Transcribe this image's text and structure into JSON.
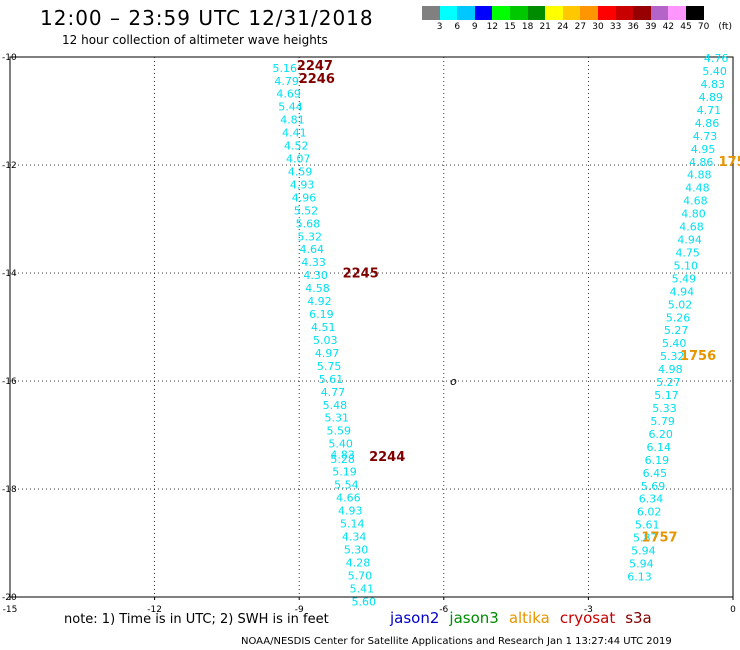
{
  "title": "12:00 – 23:59 UTC 12/31/2018",
  "subtitle": "12 hour collection of altimeter wave heights",
  "colorbar": {
    "labels": [
      "3",
      "6",
      "9",
      "12",
      "15",
      "18",
      "21",
      "24",
      "27",
      "30",
      "33",
      "36",
      "39",
      "42",
      "45",
      "70",
      "(ft)"
    ],
    "colors": [
      "#808080",
      "#00ffff",
      "#00c8ff",
      "#0000ff",
      "#00ff00",
      "#00c800",
      "#008c00",
      "#ffff00",
      "#ffc800",
      "#ff9600",
      "#ff0000",
      "#c80000",
      "#960000",
      "#b464c8",
      "#ff96ff",
      "#000000"
    ]
  },
  "chart_data": {
    "type": "scatter",
    "xlim": [
      -15,
      0
    ],
    "ylim": [
      -20,
      -10
    ],
    "x_ticks": [
      "-15",
      "-12",
      "-9",
      "-6",
      "-3",
      "0"
    ],
    "y_ticks": [
      "-10",
      "-12",
      "-14",
      "-16",
      "-18",
      "-20"
    ],
    "grid": true,
    "center_marker": "o",
    "center_marker_pos": [
      -5.8,
      -16
    ],
    "tracks": [
      {
        "name": "track-west",
        "color": "#00e0f0",
        "points": [
          {
            "x": -9.3,
            "y": -10.2,
            "label": "5.16"
          },
          {
            "x": -9.26,
            "y": -10.44,
            "label": "4.79"
          },
          {
            "x": -9.22,
            "y": -10.68,
            "label": "4.69"
          },
          {
            "x": -9.18,
            "y": -10.92,
            "label": "5.44"
          },
          {
            "x": -9.14,
            "y": -11.16,
            "label": "4.81"
          },
          {
            "x": -9.1,
            "y": -11.4,
            "label": "4.41"
          },
          {
            "x": -9.06,
            "y": -11.64,
            "label": "4.52"
          },
          {
            "x": -9.02,
            "y": -11.88,
            "label": "4.07"
          },
          {
            "x": -8.98,
            "y": -12.12,
            "label": "4.59"
          },
          {
            "x": -8.94,
            "y": -12.36,
            "label": "4.93"
          },
          {
            "x": -8.9,
            "y": -12.6,
            "label": "4.96"
          },
          {
            "x": -8.86,
            "y": -12.84,
            "label": "5.52"
          },
          {
            "x": -8.82,
            "y": -13.08,
            "label": "5.68"
          },
          {
            "x": -8.78,
            "y": -13.32,
            "label": "5.32"
          },
          {
            "x": -8.74,
            "y": -13.56,
            "label": "4.64"
          },
          {
            "x": -8.7,
            "y": -13.8,
            "label": "4.33"
          },
          {
            "x": -8.66,
            "y": -14.04,
            "label": "4.30"
          },
          {
            "x": -8.62,
            "y": -14.28,
            "label": "4.58"
          },
          {
            "x": -8.58,
            "y": -14.52,
            "label": "4.92"
          },
          {
            "x": -8.54,
            "y": -14.76,
            "label": "6.19"
          },
          {
            "x": -8.5,
            "y": -15.0,
            "label": "4.51"
          },
          {
            "x": -8.46,
            "y": -15.24,
            "label": "5.03"
          },
          {
            "x": -8.42,
            "y": -15.48,
            "label": "4.97"
          },
          {
            "x": -8.38,
            "y": -15.72,
            "label": "5.75"
          },
          {
            "x": -8.34,
            "y": -15.96,
            "label": "5.61"
          },
          {
            "x": -8.3,
            "y": -16.2,
            "label": "4.77"
          },
          {
            "x": -8.26,
            "y": -16.44,
            "label": "5.48"
          },
          {
            "x": -8.22,
            "y": -16.68,
            "label": "5.31"
          },
          {
            "x": -8.18,
            "y": -16.92,
            "label": "5.59"
          },
          {
            "x": -8.14,
            "y": -17.16,
            "label": "5.40"
          },
          {
            "x": -8.1,
            "y": -17.36,
            "label": "4.83"
          },
          {
            "x": -8.1,
            "y": -17.44,
            "label": "5.28"
          },
          {
            "x": -8.06,
            "y": -17.68,
            "label": "5.19"
          },
          {
            "x": -8.02,
            "y": -17.92,
            "label": "5.54"
          },
          {
            "x": -7.98,
            "y": -18.16,
            "label": "4.66"
          },
          {
            "x": -7.94,
            "y": -18.4,
            "label": "4.93"
          },
          {
            "x": -7.9,
            "y": -18.64,
            "label": "5.14"
          },
          {
            "x": -7.86,
            "y": -18.88,
            "label": "4.34"
          },
          {
            "x": -7.82,
            "y": -19.12,
            "label": "5.30"
          },
          {
            "x": -7.78,
            "y": -19.36,
            "label": "4.28"
          },
          {
            "x": -7.74,
            "y": -19.6,
            "label": "5.70"
          },
          {
            "x": -7.7,
            "y": -19.84,
            "label": "5.41"
          },
          {
            "x": -7.66,
            "y": -20.08,
            "label": "5.60"
          }
        ]
      },
      {
        "name": "track-east",
        "color": "#00e0f0",
        "points": [
          {
            "x": -0.35,
            "y": -10.02,
            "label": "4.76"
          },
          {
            "x": -0.38,
            "y": -10.26,
            "label": "5.40"
          },
          {
            "x": -0.42,
            "y": -10.5,
            "label": "4.83"
          },
          {
            "x": -0.46,
            "y": -10.74,
            "label": "4.89"
          },
          {
            "x": -0.5,
            "y": -10.98,
            "label": "4.71"
          },
          {
            "x": -0.54,
            "y": -11.22,
            "label": "4.86"
          },
          {
            "x": -0.58,
            "y": -11.46,
            "label": "4.73"
          },
          {
            "x": -0.62,
            "y": -11.7,
            "label": "4.95"
          },
          {
            "x": -0.66,
            "y": -11.94,
            "label": "4.86"
          },
          {
            "x": -0.7,
            "y": -12.18,
            "label": "4.88"
          },
          {
            "x": -0.74,
            "y": -12.42,
            "label": "4.48"
          },
          {
            "x": -0.78,
            "y": -12.66,
            "label": "4.68"
          },
          {
            "x": -0.82,
            "y": -12.9,
            "label": "4.80"
          },
          {
            "x": -0.86,
            "y": -13.14,
            "label": "4.68"
          },
          {
            "x": -0.9,
            "y": -13.38,
            "label": "4.94"
          },
          {
            "x": -0.94,
            "y": -13.62,
            "label": "4.75"
          },
          {
            "x": -0.98,
            "y": -13.86,
            "label": "5.10"
          },
          {
            "x": -1.02,
            "y": -14.1,
            "label": "5.49"
          },
          {
            "x": -1.06,
            "y": -14.34,
            "label": "4.94"
          },
          {
            "x": -1.1,
            "y": -14.58,
            "label": "5.02"
          },
          {
            "x": -1.14,
            "y": -14.82,
            "label": "5.26"
          },
          {
            "x": -1.18,
            "y": -15.06,
            "label": "5.27"
          },
          {
            "x": -1.22,
            "y": -15.3,
            "label": "5.40"
          },
          {
            "x": -1.26,
            "y": -15.54,
            "label": "5.32"
          },
          {
            "x": -1.3,
            "y": -15.78,
            "label": "4.98"
          },
          {
            "x": -1.34,
            "y": -16.02,
            "label": "5.27"
          },
          {
            "x": -1.38,
            "y": -16.26,
            "label": "5.17"
          },
          {
            "x": -1.42,
            "y": -16.5,
            "label": "5.33"
          },
          {
            "x": -1.46,
            "y": -16.74,
            "label": "5.79"
          },
          {
            "x": -1.5,
            "y": -16.98,
            "label": "6.20"
          },
          {
            "x": -1.54,
            "y": -17.22,
            "label": "6.14"
          },
          {
            "x": -1.58,
            "y": -17.46,
            "label": "6.19"
          },
          {
            "x": -1.62,
            "y": -17.7,
            "label": "6.45"
          },
          {
            "x": -1.66,
            "y": -17.94,
            "label": "5.69"
          },
          {
            "x": -1.7,
            "y": -18.18,
            "label": "6.34"
          },
          {
            "x": -1.74,
            "y": -18.42,
            "label": "6.02"
          },
          {
            "x": -1.78,
            "y": -18.66,
            "label": "5.61"
          },
          {
            "x": -1.82,
            "y": -18.9,
            "label": "5.87"
          },
          {
            "x": -1.86,
            "y": -19.14,
            "label": "5.94"
          },
          {
            "x": -1.9,
            "y": -19.38,
            "label": "5.94"
          },
          {
            "x": -1.94,
            "y": -19.62,
            "label": "6.13"
          }
        ]
      }
    ],
    "time_labels": [
      {
        "x": -9.05,
        "y": -10.17,
        "label": "2247",
        "color": "#800000"
      },
      {
        "x": -9.01,
        "y": -10.41,
        "label": "2246",
        "color": "#800000"
      },
      {
        "x": -8.1,
        "y": -14.01,
        "label": "2245",
        "color": "#800000"
      },
      {
        "x": -7.55,
        "y": -17.41,
        "label": "2244",
        "color": "#800000"
      },
      {
        "x": -0.3,
        "y": -11.94,
        "label": "175",
        "color": "#e69500"
      },
      {
        "x": -1.1,
        "y": -15.54,
        "label": "1756",
        "color": "#e69500"
      },
      {
        "x": -1.9,
        "y": -18.9,
        "label": "1757",
        "color": "#e69500"
      }
    ]
  },
  "note": "note: 1) Time is in UTC; 2) SWH is in feet",
  "legend": [
    {
      "label": "jason2",
      "color": "#0000c8"
    },
    {
      "label": "jason3",
      "color": "#008c00"
    },
    {
      "label": "altika",
      "color": "#e69500"
    },
    {
      "label": "cryosat",
      "color": "#c80000"
    },
    {
      "label": "s3a",
      "color": "#800000"
    }
  ],
  "footer": "NOAA/NESDIS Center for Satellite Applications and Research    Jan  1 13:27:44 UTC 2019"
}
